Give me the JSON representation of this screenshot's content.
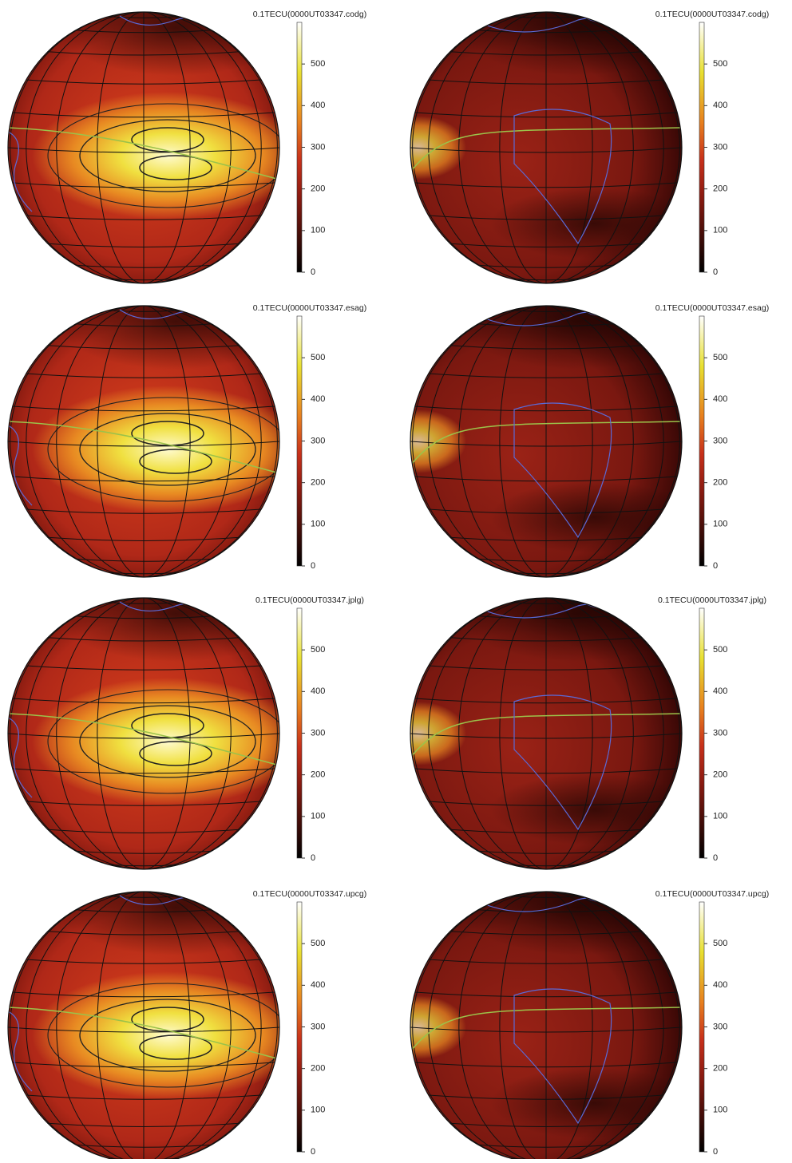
{
  "panels": [
    {
      "title": "0.1TECU(0000UT03347.codg)",
      "colorbar": {
        "lim": [
          0,
          600
        ],
        "ticks": [
          0,
          100,
          200,
          300,
          400,
          500
        ]
      }
    },
    {
      "title": "0.1TECU(0000UT03347.codg)",
      "colorbar": {
        "lim": [
          0,
          600
        ],
        "ticks": [
          0,
          100,
          200,
          300,
          400,
          500
        ]
      }
    },
    {
      "title": "0.1TECU(0000UT03347.esag)",
      "colorbar": {
        "lim": [
          0,
          600
        ],
        "ticks": [
          0,
          100,
          200,
          300,
          400,
          500
        ]
      }
    },
    {
      "title": "0.1TECU(0000UT03347.esag)",
      "colorbar": {
        "lim": [
          0,
          600
        ],
        "ticks": [
          0,
          100,
          200,
          300,
          400,
          500
        ]
      }
    },
    {
      "title": "0.1TECU(0000UT03347.jplg)",
      "colorbar": {
        "lim": [
          0,
          600
        ],
        "ticks": [
          0,
          100,
          200,
          300,
          400,
          500
        ]
      }
    },
    {
      "title": "0.1TECU(0000UT03347.jplg)",
      "colorbar": {
        "lim": [
          0,
          600
        ],
        "ticks": [
          0,
          100,
          200,
          300,
          400,
          500
        ]
      }
    },
    {
      "title": "0.1TECU(0000UT03347.upcg)",
      "colorbar": {
        "lim": [
          0,
          600
        ],
        "ticks": [
          0,
          100,
          200,
          300,
          400,
          500
        ]
      }
    },
    {
      "title": "0.1TECU(0000UT03347.upcg)",
      "colorbar": {
        "lim": [
          0,
          600
        ],
        "ticks": [
          0,
          100,
          200,
          300,
          400,
          500
        ]
      }
    }
  ]
}
